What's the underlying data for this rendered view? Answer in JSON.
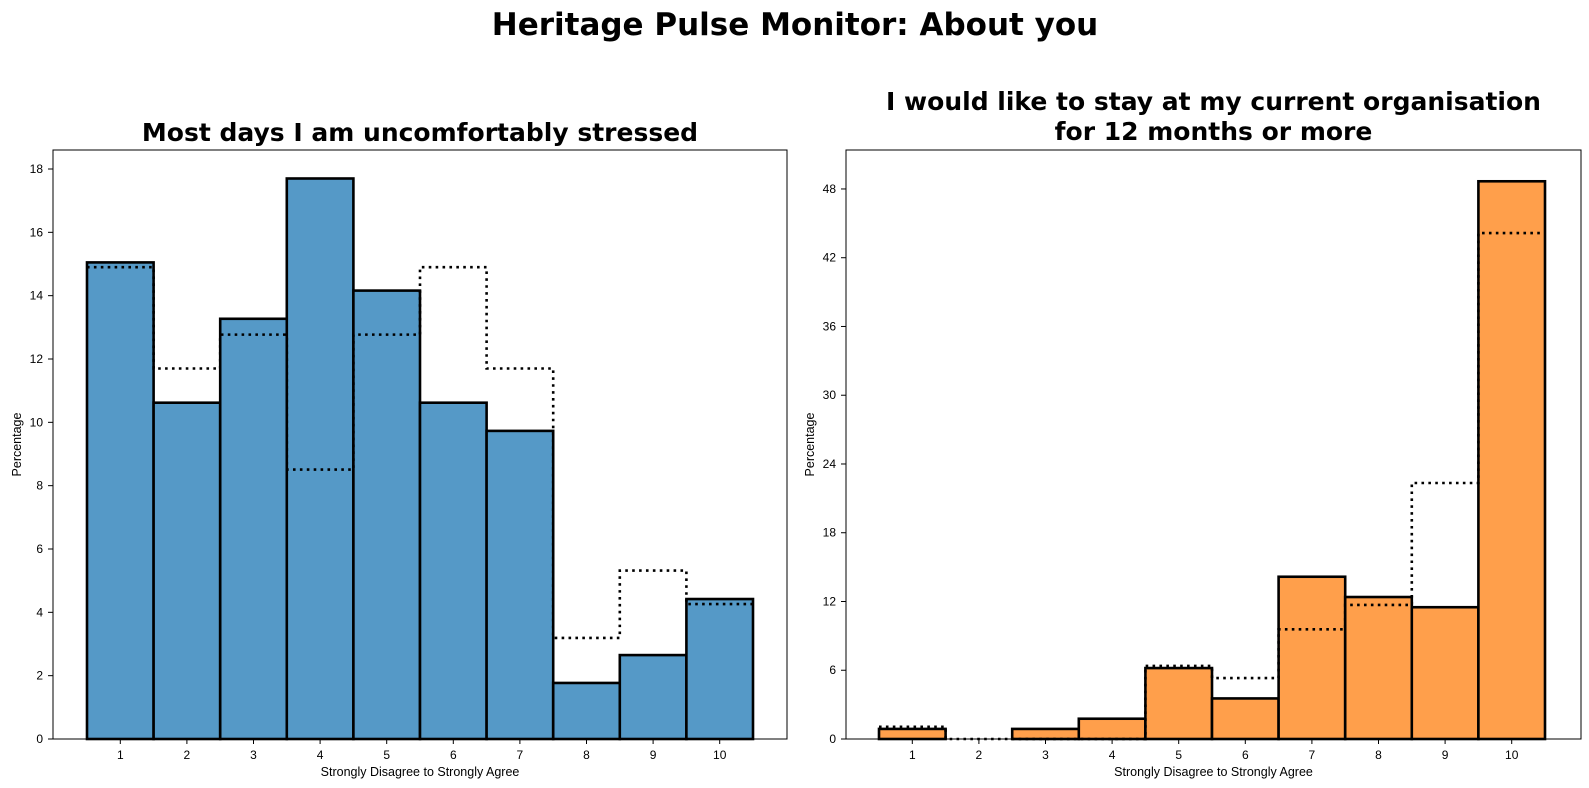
{
  "figure": {
    "title": "Heritage Pulse Monitor: About you"
  },
  "chart_data": [
    {
      "type": "bar",
      "title_lines": [
        "Most days I am uncomfortably stressed"
      ],
      "xlabel": "Strongly Disagree to Strongly Agree",
      "ylabel": "Percentage",
      "categories": [
        "1",
        "2",
        "3",
        "4",
        "5",
        "6",
        "7",
        "8",
        "9",
        "10"
      ],
      "yticks": [
        0,
        2,
        4,
        6,
        8,
        10,
        12,
        14,
        16,
        18
      ],
      "ylim": [
        0,
        18.6
      ],
      "grid": false,
      "series": [
        {
          "values": [
            15.05,
            10.62,
            13.27,
            17.7,
            14.16,
            10.62,
            9.73,
            1.77,
            2.65,
            4.42
          ],
          "style": "filled bars",
          "color": "#5599c7",
          "edge_color": "#000000"
        },
        {
          "values": [
            14.9,
            11.7,
            12.77,
            8.51,
            12.77,
            14.9,
            11.7,
            3.19,
            5.32,
            4.26
          ],
          "style": "dotted step outline",
          "color": "#000000"
        }
      ]
    },
    {
      "type": "bar",
      "title_lines": [
        "I would like to stay at my current organisation",
        "for 12 months or more"
      ],
      "xlabel": "Strongly Disagree to Strongly Agree",
      "ylabel": "Percentage",
      "categories": [
        "1",
        "2",
        "3",
        "4",
        "5",
        "6",
        "7",
        "8",
        "9",
        "10"
      ],
      "yticks": [
        0,
        6,
        12,
        18,
        24,
        30,
        36,
        42,
        48
      ],
      "ylim": [
        0,
        51.4
      ],
      "grid": false,
      "series": [
        {
          "values": [
            0.88,
            0,
            0.88,
            1.77,
            6.19,
            3.54,
            14.16,
            12.39,
            11.5,
            48.67
          ],
          "style": "filled bars",
          "color": "#ff9f4b",
          "edge_color": "#000000"
        },
        {
          "values": [
            1.06,
            0,
            0,
            0,
            6.38,
            5.32,
            9.57,
            11.7,
            22.34,
            44.15
          ],
          "style": "dotted step outline",
          "color": "#000000"
        }
      ]
    }
  ]
}
